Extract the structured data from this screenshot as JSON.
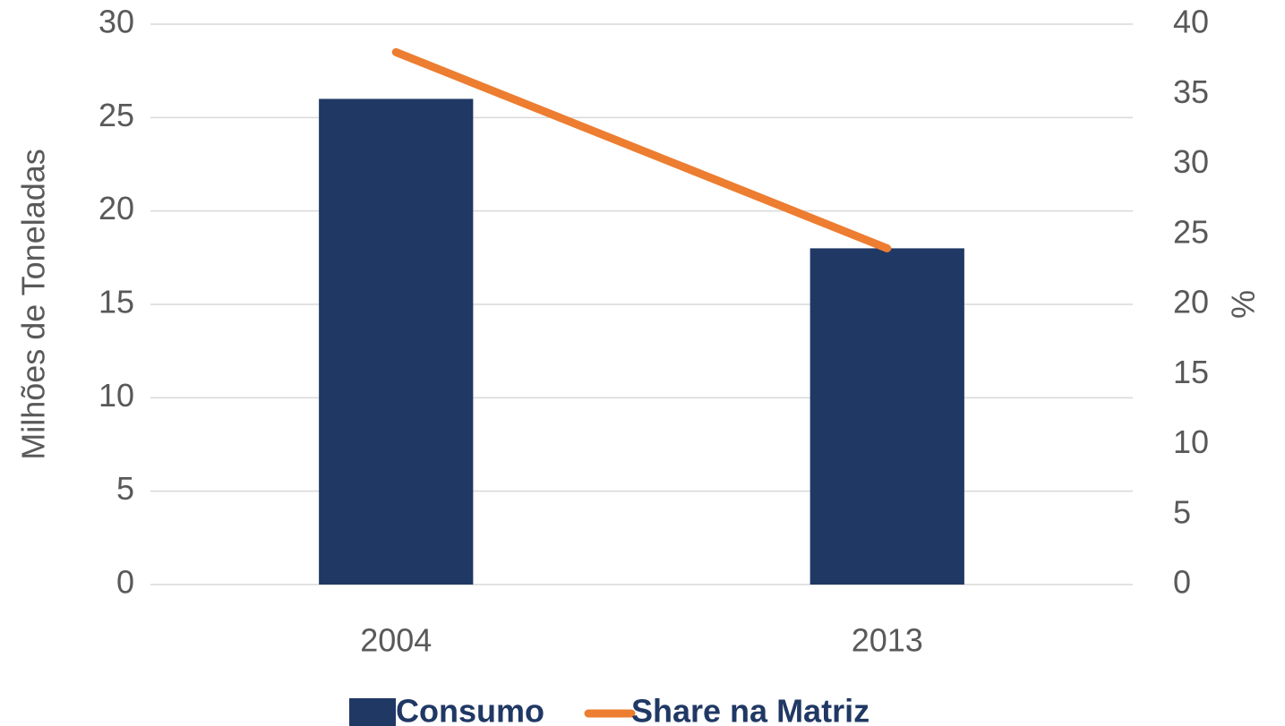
{
  "chart_data": {
    "type": "bar",
    "categories": [
      "2004",
      "2013"
    ],
    "series": [
      {
        "name": "Consumo",
        "type": "bar",
        "color": "#203864",
        "values": [
          26,
          18
        ]
      },
      {
        "name": "Share na Matriz",
        "type": "line",
        "color": "#ed7d31",
        "axis": "y2",
        "values": [
          38,
          24
        ]
      }
    ],
    "ylabel": "Milhões de Toneladas",
    "y2label": "%",
    "ylim": [
      0,
      30
    ],
    "yticks": [
      0,
      5,
      10,
      15,
      20,
      25,
      30
    ],
    "y2lim": [
      0,
      40
    ],
    "y2ticks": [
      0,
      5,
      10,
      15,
      20,
      25,
      30,
      35,
      40
    ],
    "grid": true,
    "legend": "bottom"
  }
}
